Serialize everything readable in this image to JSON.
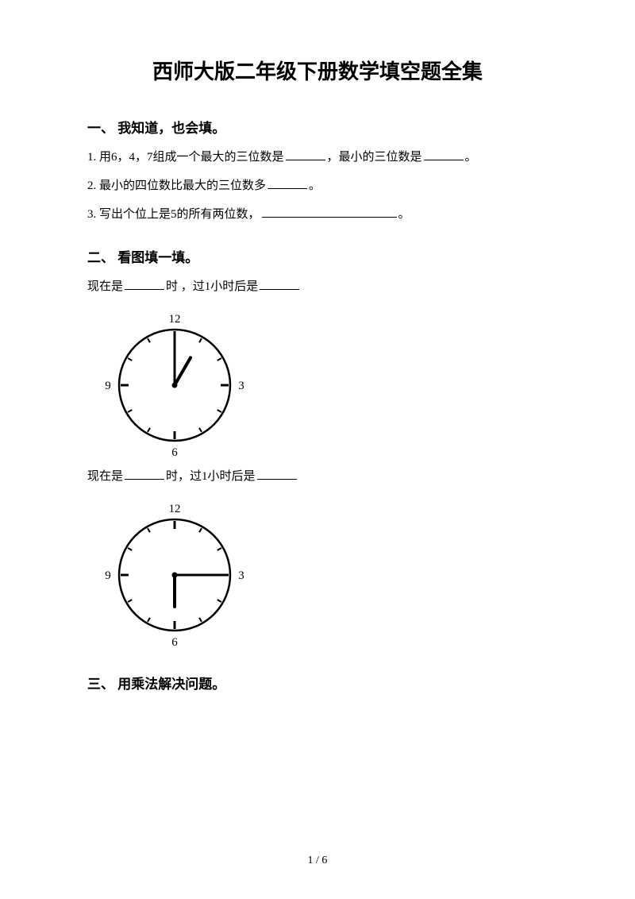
{
  "title": "西师大版二年级下册数学填空题全集",
  "sections": {
    "s1": {
      "heading": "一、 我知道，也会填。",
      "q1a": "1. 用6，4，7组成一个最大的三位数是",
      "q1b": "，最小的三位数是",
      "q1c": "。",
      "q2a": "2. 最小的四位数比最大的三位数多",
      "q2b": "。",
      "q3a": "3. 写出个位上是5的所有两位数，",
      "q3b": "。"
    },
    "s2": {
      "heading": "二、 看图填一填。",
      "line1a": "现在是",
      "line1b": "时 ，过1小时后是",
      "line2a": "现在是",
      "line2b": "时，过1小时后是"
    },
    "s3": {
      "heading": "三、 用乘法解决问题。"
    }
  },
  "clocks": {
    "clock1": {
      "size": 180,
      "radius": 70,
      "stroke": "#000000",
      "numbers": [
        "12",
        "3",
        "6",
        "9"
      ],
      "minuteHandAngle": 0,
      "hourHandAngle": 30,
      "minuteLen": 58,
      "hourLen": 40
    },
    "clock2": {
      "size": 180,
      "radius": 70,
      "stroke": "#000000",
      "numbers": [
        "12",
        "3",
        "6",
        "9"
      ],
      "minuteHandAngle": 90,
      "hourHandAngle": 180,
      "minuteLen": 58,
      "hourLen": 40
    }
  },
  "pageNumber": "1 / 6"
}
